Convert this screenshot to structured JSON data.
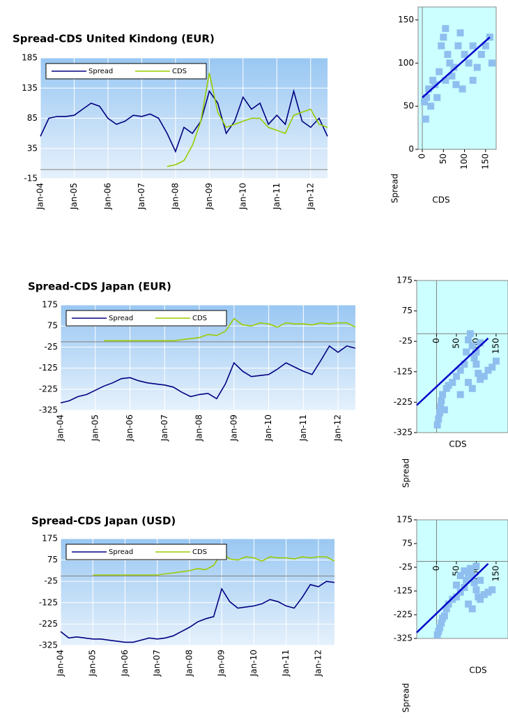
{
  "chart_data": [
    {
      "type": "line",
      "title": "Spread-CDS United Kindong (EUR)",
      "categories": [
        "Jan-04",
        null,
        null,
        null,
        "Jan-05",
        null,
        null,
        null,
        "Jan-06",
        null,
        null,
        null,
        "Jan-07",
        null,
        null,
        null,
        "Jan-08",
        null,
        null,
        null,
        "Jan-09",
        null,
        null,
        null,
        "Jan-10",
        null,
        null,
        null,
        "Jan-11",
        null,
        null,
        null,
        "Jan-12",
        null,
        null
      ],
      "series": [
        {
          "name": "Spread",
          "color": "#000080",
          "values": [
            55,
            85,
            88,
            88,
            90,
            100,
            110,
            105,
            85,
            75,
            80,
            90,
            88,
            92,
            85,
            60,
            30,
            70,
            60,
            80,
            130,
            110,
            60,
            80,
            120,
            100,
            110,
            75,
            90,
            75,
            130,
            80,
            70,
            85,
            55
          ]
        },
        {
          "name": "CDS",
          "color": "#99cc00",
          "values": [
            null,
            null,
            null,
            null,
            null,
            null,
            null,
            null,
            null,
            null,
            null,
            null,
            null,
            null,
            null,
            5,
            8,
            15,
            40,
            80,
            160,
            95,
            70,
            75,
            80,
            85,
            85,
            70,
            65,
            60,
            90,
            95,
            100,
            75,
            70
          ]
        }
      ],
      "ylim": [
        -15,
        185
      ],
      "yticks": [
        -15,
        35,
        85,
        135,
        185
      ],
      "grid": true,
      "legend": "top-left"
    },
    {
      "type": "scatter",
      "x_label": "CDS",
      "y_label": "Spread",
      "color": "#8fbfef",
      "trendline_color": "#0000cc",
      "x": [
        5,
        10,
        15,
        20,
        25,
        30,
        40,
        45,
        50,
        55,
        60,
        65,
        70,
        75,
        80,
        85,
        90,
        100,
        110,
        120,
        130,
        140,
        150,
        160,
        165,
        8,
        35,
        55,
        95,
        120
      ],
      "y": [
        55,
        60,
        70,
        50,
        80,
        75,
        90,
        120,
        130,
        140,
        110,
        100,
        85,
        95,
        75,
        120,
        135,
        110,
        100,
        80,
        95,
        110,
        120,
        130,
        100,
        35,
        60,
        80,
        70,
        120
      ],
      "trendline": {
        "x": [
          0,
          160
        ],
        "y": [
          60,
          130
        ]
      },
      "xlim": [
        -10,
        175
      ],
      "xticks": [
        0,
        50,
        100,
        150
      ],
      "ylim": [
        0,
        165
      ],
      "yticks": [
        0,
        50,
        100,
        150
      ]
    },
    {
      "type": "line",
      "title": "Spread-CDS Japan (EUR)",
      "categories": [
        "Jan-04",
        null,
        null,
        null,
        "Jan-05",
        null,
        null,
        null,
        "Jan-06",
        null,
        null,
        null,
        "Jan-07",
        null,
        null,
        null,
        "Jan-08",
        null,
        null,
        null,
        "Jan-09",
        null,
        null,
        null,
        "Jan-10",
        null,
        null,
        null,
        "Jan-11",
        null,
        null,
        null,
        "Jan-12",
        null,
        null
      ],
      "series": [
        {
          "name": "Spread",
          "color": "#000080",
          "values": [
            -290,
            -280,
            -260,
            -250,
            -230,
            -210,
            -195,
            -175,
            -170,
            -185,
            -195,
            -200,
            -205,
            -215,
            -240,
            -260,
            -250,
            -245,
            -270,
            -200,
            -100,
            -140,
            -165,
            -160,
            -155,
            -130,
            -100,
            -120,
            -140,
            -155,
            -90,
            -20,
            -50,
            -20,
            -30
          ]
        },
        {
          "name": "CDS",
          "color": "#99cc00",
          "values": [
            null,
            null,
            null,
            null,
            null,
            5,
            5,
            5,
            5,
            5,
            5,
            5,
            5,
            5,
            10,
            15,
            20,
            35,
            30,
            50,
            110,
            80,
            75,
            90,
            85,
            70,
            90,
            85,
            85,
            80,
            90,
            85,
            90,
            90,
            70
          ]
        }
      ],
      "ylim": [
        -325,
        175
      ],
      "yticks": [
        -325,
        -225,
        -125,
        -25,
        75,
        175
      ],
      "grid": true,
      "legend": "top-left"
    },
    {
      "type": "scatter",
      "x_label": "CDS",
      "y_label": "Spread",
      "color": "#8fbfef",
      "trendline_color": "#0000cc",
      "x": [
        2,
        5,
        8,
        10,
        12,
        15,
        20,
        25,
        30,
        40,
        50,
        60,
        70,
        75,
        80,
        85,
        90,
        95,
        100,
        105,
        110,
        120,
        130,
        140,
        150,
        80,
        90,
        60,
        100,
        110
      ],
      "y": [
        -300,
        -280,
        -260,
        -240,
        -220,
        -200,
        -250,
        -180,
        -170,
        -160,
        -140,
        -120,
        -100,
        -60,
        -20,
        0,
        -40,
        -80,
        -100,
        -130,
        -150,
        -140,
        -120,
        -110,
        -90,
        -160,
        -180,
        -200,
        -60,
        -30
      ],
      "trendline": {
        "x": [
          -50,
          130
        ],
        "y": [
          -235,
          -15
        ]
      },
      "xlim": [
        -50,
        180
      ],
      "xticks": [
        0,
        50,
        100,
        150
      ],
      "ylim": [
        -325,
        175
      ],
      "yticks": [
        -325,
        -225,
        -125,
        -25,
        75,
        175
      ]
    },
    {
      "type": "line",
      "title": "Spread-CDS Japan (USD)",
      "categories": [
        "Jan-04",
        null,
        null,
        null,
        "Jan-05",
        null,
        null,
        null,
        "Jan-06",
        null,
        null,
        null,
        "Jan-07",
        null,
        null,
        null,
        "Jan-08",
        null,
        null,
        null,
        "Jan-09",
        null,
        null,
        null,
        "Jan-10",
        null,
        null,
        null,
        "Jan-11",
        null,
        null,
        null,
        "Jan-12",
        null,
        null
      ],
      "series": [
        {
          "name": "Spread",
          "color": "#000080",
          "values": [
            -260,
            -290,
            -285,
            -290,
            -295,
            -295,
            -300,
            -305,
            -310,
            -310,
            -300,
            -290,
            -295,
            -290,
            -280,
            -260,
            -240,
            -215,
            -200,
            -190,
            -60,
            -120,
            -150,
            -145,
            -140,
            -130,
            -110,
            -120,
            -140,
            -150,
            -100,
            -40,
            -50,
            -25,
            -30
          ]
        },
        {
          "name": "CDS",
          "color": "#99cc00",
          "values": [
            null,
            null,
            null,
            null,
            5,
            5,
            5,
            5,
            5,
            5,
            5,
            5,
            5,
            10,
            15,
            20,
            25,
            35,
            30,
            50,
            110,
            80,
            75,
            90,
            85,
            70,
            90,
            85,
            85,
            80,
            90,
            85,
            90,
            90,
            70
          ]
        }
      ],
      "ylim": [
        -325,
        175
      ],
      "yticks": [
        -325,
        -225,
        -125,
        -25,
        75,
        175
      ],
      "grid": true,
      "legend": "top-left"
    },
    {
      "type": "scatter",
      "x_label": "CDS",
      "y_label": "Spread",
      "color": "#8fbfef",
      "trendline_color": "#0000cc",
      "x": [
        2,
        5,
        8,
        12,
        15,
        20,
        25,
        30,
        40,
        50,
        60,
        70,
        75,
        80,
        85,
        90,
        95,
        100,
        105,
        110,
        120,
        130,
        140,
        60,
        70,
        100,
        80,
        90,
        50,
        110
      ],
      "y": [
        -310,
        -295,
        -280,
        -260,
        -240,
        -230,
        -200,
        -180,
        -160,
        -150,
        -130,
        -110,
        -80,
        -50,
        -30,
        -60,
        -90,
        -120,
        -150,
        -160,
        -140,
        -130,
        -120,
        -60,
        -40,
        -20,
        -180,
        -200,
        -100,
        -80
      ],
      "trendline": {
        "x": [
          -50,
          130
        ],
        "y": [
          -300,
          -10
        ]
      },
      "xlim": [
        -50,
        180
      ],
      "xticks": [
        0,
        50,
        100,
        150
      ],
      "ylim": [
        -325,
        175
      ],
      "yticks": [
        -325,
        -225,
        -125,
        -25,
        75,
        175
      ]
    }
  ]
}
